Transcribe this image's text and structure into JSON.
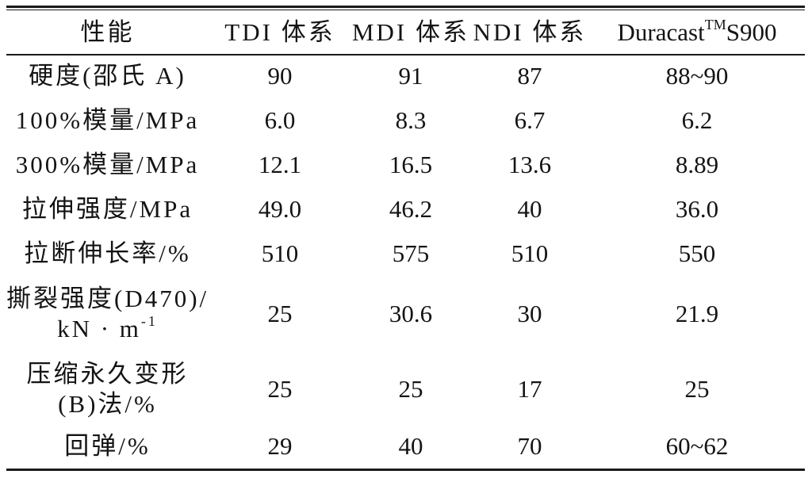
{
  "table": {
    "headers": [
      "性能",
      "TDI 体系",
      "MDI 体系",
      "NDI 体系",
      "Duracast",
      "TM",
      "S900"
    ],
    "rows": [
      {
        "property": "硬度(邵氏 A)",
        "tdi": "90",
        "mdi": "91",
        "ndi": "87",
        "duracast": "88~90"
      },
      {
        "property": "100%模量/MPa",
        "tdi": "6.0",
        "mdi": "8.3",
        "ndi": "6.7",
        "duracast": "6.2"
      },
      {
        "property": "300%模量/MPa",
        "tdi": "12.1",
        "mdi": "16.5",
        "ndi": "13.6",
        "duracast": "8.89"
      },
      {
        "property": "拉伸强度/MPa",
        "tdi": "49.0",
        "mdi": "46.2",
        "ndi": "40",
        "duracast": "36.0"
      },
      {
        "property": "拉断伸长率/%",
        "tdi": "510",
        "mdi": "575",
        "ndi": "510",
        "duracast": "550"
      },
      {
        "property_lines": [
          "撕裂强度(D470)/",
          "kN · m",
          "-1"
        ],
        "tdi": "25",
        "mdi": "30.6",
        "ndi": "30",
        "duracast": "21.9"
      },
      {
        "property_lines": [
          "压缩永久变形",
          "(B)法/%"
        ],
        "tdi": "25",
        "mdi": "25",
        "ndi": "17",
        "duracast": "25"
      },
      {
        "property": "回弹/%",
        "tdi": "29",
        "mdi": "40",
        "ndi": "70",
        "duracast": "60~62"
      }
    ]
  }
}
